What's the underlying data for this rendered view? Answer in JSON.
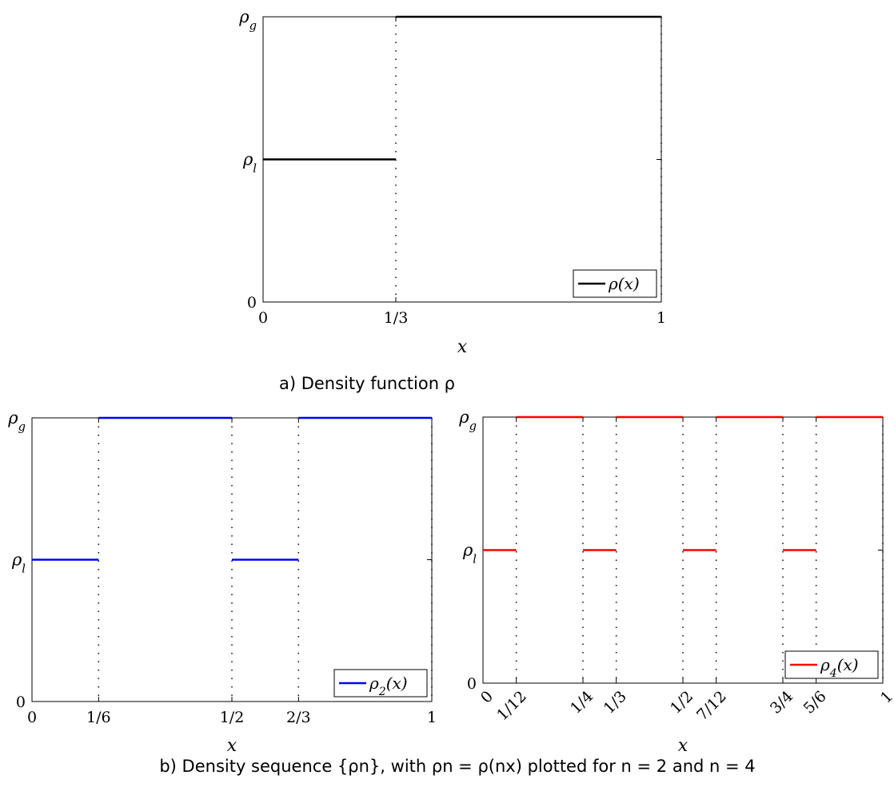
{
  "chart_data": [
    {
      "type": "line",
      "id": "a",
      "caption": "a) Density function ρ",
      "xlabel": "x",
      "xlim": [
        0,
        1
      ],
      "ylevels": {
        "rho_l": 0.5,
        "rho_g": 1.0
      },
      "ylim": [
        0,
        1
      ],
      "xticks": [
        {
          "value": 0,
          "label": "0"
        },
        {
          "value": 0.3333333,
          "label": "1/3"
        },
        {
          "value": 1,
          "label": "1"
        }
      ],
      "yticks": [
        {
          "value": 0,
          "label": "0"
        },
        {
          "value": 0.5,
          "label": "ρl"
        },
        {
          "value": 1.0,
          "label": "ρg"
        }
      ],
      "breaks": [
        0.3333333,
        1
      ],
      "color": "#000000",
      "legend": {
        "label": "ρ(x)",
        "position": "bottom-right"
      },
      "series": [
        {
          "name": "ρ(x)",
          "segments": [
            [
              0,
              0.3333333,
              0.5
            ],
            [
              0.3333333,
              1,
              1.0
            ]
          ]
        }
      ]
    },
    {
      "type": "line",
      "id": "b-left",
      "xlabel": "x",
      "xlim": [
        0,
        1
      ],
      "ylim": [
        0,
        1
      ],
      "xticks": [
        {
          "value": 0,
          "label": "0"
        },
        {
          "value": 0.1666667,
          "label": "1/6"
        },
        {
          "value": 0.5,
          "label": "1/2"
        },
        {
          "value": 0.6666667,
          "label": "2/3"
        },
        {
          "value": 1,
          "label": "1"
        }
      ],
      "yticks": [
        {
          "value": 0,
          "label": "0"
        },
        {
          "value": 0.5,
          "label": "ρl"
        },
        {
          "value": 1.0,
          "label": "ρg"
        }
      ],
      "breaks": [
        0.1666667,
        0.5,
        0.6666667,
        1
      ],
      "color": "#0000ff",
      "legend": {
        "label": "ρ2(x)",
        "position": "bottom-right"
      },
      "series": [
        {
          "name": "ρ2(x)",
          "segments": [
            [
              0,
              0.1666667,
              0.5
            ],
            [
              0.1666667,
              0.5,
              1.0
            ],
            [
              0.5,
              0.6666667,
              0.5
            ],
            [
              0.6666667,
              1,
              1.0
            ]
          ]
        }
      ]
    },
    {
      "type": "line",
      "id": "b-right",
      "xlabel": "x",
      "xlim": [
        0,
        1
      ],
      "ylim": [
        0,
        1
      ],
      "rotated_xticks": true,
      "xticks": [
        {
          "value": 0,
          "label": "0"
        },
        {
          "value": 0.0833333,
          "label": "1/12"
        },
        {
          "value": 0.25,
          "label": "1/4"
        },
        {
          "value": 0.3333333,
          "label": "1/3"
        },
        {
          "value": 0.5,
          "label": "1/2"
        },
        {
          "value": 0.5833333,
          "label": "7/12"
        },
        {
          "value": 0.75,
          "label": "3/4"
        },
        {
          "value": 0.8333333,
          "label": "5/6"
        },
        {
          "value": 1,
          "label": "1"
        }
      ],
      "yticks": [
        {
          "value": 0,
          "label": "0"
        },
        {
          "value": 0.5,
          "label": "ρl"
        },
        {
          "value": 1.0,
          "label": "ρg"
        }
      ],
      "breaks": [
        0.0833333,
        0.25,
        0.3333333,
        0.5,
        0.5833333,
        0.75,
        0.8333333,
        1
      ],
      "color": "#ff0000",
      "legend": {
        "label": "ρ4(x)",
        "position": "bottom-right"
      },
      "series": [
        {
          "name": "ρ4(x)",
          "segments": [
            [
              0,
              0.0833333,
              0.5
            ],
            [
              0.0833333,
              0.25,
              1.0
            ],
            [
              0.25,
              0.3333333,
              0.5
            ],
            [
              0.3333333,
              0.5,
              1.0
            ],
            [
              0.5,
              0.5833333,
              0.5
            ],
            [
              0.5833333,
              0.75,
              1.0
            ],
            [
              0.75,
              0.8333333,
              0.5
            ],
            [
              0.8333333,
              1,
              1.0
            ]
          ]
        }
      ]
    }
  ],
  "captions": {
    "a": "a) Density function ρ",
    "b": "b) Density sequence {ρn}, with ρn = ρ(nx) plotted for n = 2 and n = 4"
  }
}
